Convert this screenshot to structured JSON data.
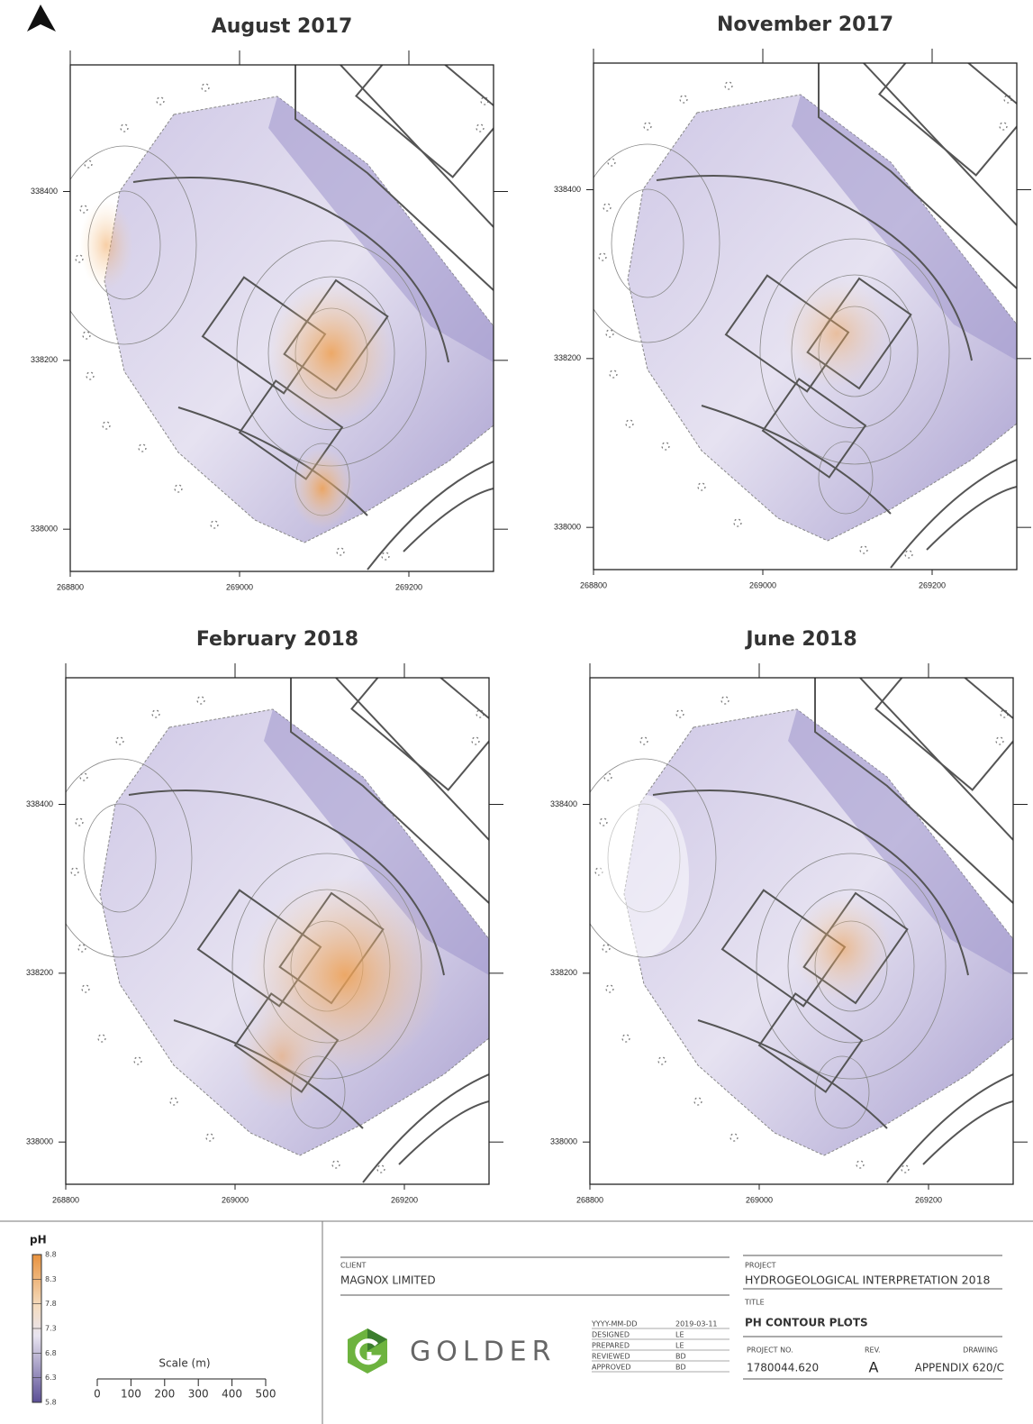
{
  "maps": [
    {
      "title": "August 2017",
      "xlim": [
        268800,
        269300
      ],
      "ylim": [
        337950,
        338550
      ],
      "xticks": [
        268800,
        269000,
        269200
      ],
      "yticks": [
        338000,
        338200,
        338400
      ]
    },
    {
      "title": "November 2017",
      "xlim": [
        268800,
        269300
      ],
      "ylim": [
        337950,
        338550
      ],
      "xticks": [
        268800,
        269000,
        269200
      ],
      "yticks": [
        338000,
        338200,
        338400
      ]
    },
    {
      "title": "February 2018",
      "xlim": [
        268800,
        269300
      ],
      "ylim": [
        337950,
        338550
      ],
      "xticks": [
        268800,
        269000,
        269200
      ],
      "yticks": [
        338000,
        338200,
        338400
      ]
    },
    {
      "title": "June 2018",
      "xlim": [
        268800,
        269300
      ],
      "ylim": [
        337950,
        338550
      ],
      "xticks": [
        268800,
        269000,
        269200
      ],
      "yticks": [
        338000,
        338200,
        338400
      ]
    }
  ],
  "legend": {
    "title": "pH",
    "range": [
      5.8,
      8.8
    ],
    "ticks": [
      8.8,
      8.3,
      7.8,
      7.3,
      6.8,
      6.3,
      5.8
    ]
  },
  "scale_bar": {
    "label": "Scale (m)",
    "range": [
      0,
      500
    ],
    "ticks": [
      0,
      100,
      200,
      300,
      400,
      500
    ]
  },
  "title_block": {
    "client_label": "CLIENT",
    "client": "MAGNOX LIMITED",
    "company": "GOLDER",
    "dates": [
      [
        "YYYY-MM-DD",
        "2019-03-11"
      ],
      [
        "DESIGNED",
        "LE"
      ],
      [
        "PREPARED",
        "LE"
      ],
      [
        "REVIEWED",
        "BD"
      ],
      [
        "APPROVED",
        "BD"
      ]
    ],
    "project_label": "PROJECT",
    "project": "HYDROGEOLOGICAL INTERPRETATION 2018",
    "title_label": "TITLE",
    "title": "PH CONTOUR PLOTS",
    "project_no_label": "PROJECT NO.",
    "project_no": "1780044.620",
    "rev_label": "REV.",
    "rev": "A",
    "drawing_label": "DRAWING",
    "drawing": "APPENDIX 620/C"
  }
}
